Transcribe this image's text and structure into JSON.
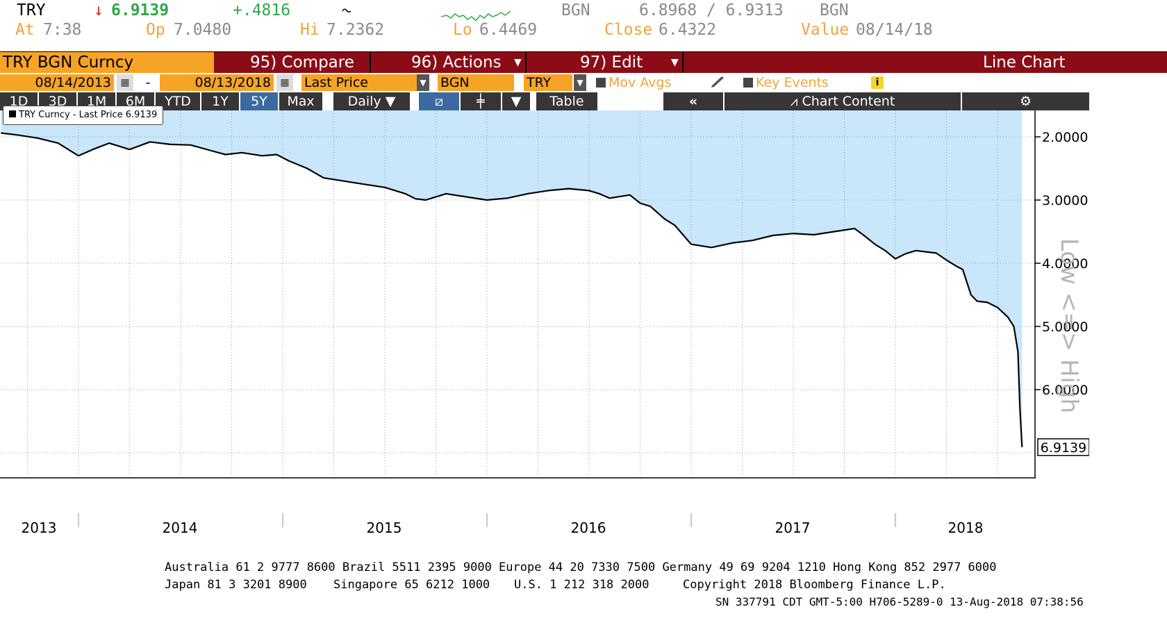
{
  "quote": {
    "ticker": "TRY",
    "arrow": "↓",
    "last": "6.9139",
    "change": "+.4816",
    "source_left": "BGN",
    "bid_ask": "6.8968 / 6.9313",
    "source_right": "BGN",
    "at_label": "At",
    "at_value": "7:38",
    "op_label": "Op",
    "op_value": "7.0480",
    "hi_label": "Hi",
    "hi_value": "7.2362",
    "lo_label": "Lo",
    "lo_value": "6.4469",
    "close_label": "Close",
    "close_value": "6.4322",
    "value_label": "Value",
    "value_value": "08/14/18"
  },
  "titlebar": {
    "security": "TRY BGN Curncy",
    "compare": "95) Compare",
    "actions": "96) Actions",
    "edit": "97) Edit",
    "view": "Line Chart"
  },
  "params": {
    "start_date": "08/14/2013",
    "dash": "-",
    "end_date": "08/13/2018",
    "field": "Last Price",
    "source": "BGN",
    "currency": "TRY",
    "mov_avgs": "Mov Avgs",
    "key_events": "Key Events"
  },
  "ranges": [
    "1D",
    "3D",
    "1M",
    "6M",
    "YTD",
    "1Y",
    "5Y",
    "Max"
  ],
  "active_range": "5Y",
  "periodicity": "Daily",
  "table_label": "Table",
  "chart_content_label": "Chart Content",
  "legend": "TRY Curncy - Last Price 6.9139",
  "axis_watermark": "Low <=> High",
  "colors": {
    "fill": "#c9e6fb",
    "line": "#000000",
    "bar": "#8b0c17",
    "accent": "#f6a326"
  },
  "footer": {
    "line1": "Australia 61 2 9777 8600 Brazil 5511 2395 9000 Europe 44 20 7330 7500 Germany 49 69 9204 1210 Hong Kong 852 2977 6000",
    "line2_a": "Japan 81 3 3201 8900",
    "line2_b": "Singapore 65 6212 1000",
    "line2_c": "U.S. 1 212 318 2000",
    "line2_d": "Copyright 2018 Bloomberg Finance L.P.",
    "line3": "SN 337791 CDT  GMT-5:00 H706-5289-0 13-Aug-2018 07:38:56"
  },
  "chart_data": {
    "type": "area",
    "x_ticks": [
      "2013",
      "2014",
      "2015",
      "2016",
      "2017",
      "2018"
    ],
    "y_ticks": [
      "2.0000",
      "3.0000",
      "4.0000",
      "5.0000",
      "6.0000"
    ],
    "y_inverted": true,
    "ylim": [
      1.5,
      7.5
    ],
    "last_label": "6.9139",
    "series": [
      {
        "name": "TRY Curncy - Last Price",
        "x": [
          2013.62,
          2013.7,
          2013.8,
          2013.9,
          2014.0,
          2014.07,
          2014.15,
          2014.25,
          2014.35,
          2014.45,
          2014.55,
          2014.65,
          2014.72,
          2014.8,
          2014.9,
          2014.97,
          2015.03,
          2015.12,
          2015.2,
          2015.3,
          2015.4,
          2015.5,
          2015.6,
          2015.65,
          2015.7,
          2015.8,
          2015.9,
          2016.0,
          2016.1,
          2016.2,
          2016.3,
          2016.4,
          2016.5,
          2016.55,
          2016.6,
          2016.7,
          2016.75,
          2016.8,
          2016.87,
          2016.92,
          2017.0,
          2017.1,
          2017.2,
          2017.3,
          2017.4,
          2017.5,
          2017.6,
          2017.7,
          2017.8,
          2017.85,
          2017.9,
          2017.95,
          2018.0,
          2018.05,
          2018.1,
          2018.15,
          2018.2,
          2018.25,
          2018.3,
          2018.33,
          2018.37,
          2018.4,
          2018.45,
          2018.5,
          2018.55,
          2018.58,
          2018.6,
          2018.61,
          2018.62
        ],
        "y": [
          1.94,
          1.97,
          2.02,
          2.1,
          2.3,
          2.2,
          2.1,
          2.2,
          2.08,
          2.12,
          2.13,
          2.22,
          2.28,
          2.25,
          2.3,
          2.28,
          2.38,
          2.5,
          2.65,
          2.7,
          2.75,
          2.8,
          2.9,
          2.98,
          3.0,
          2.9,
          2.95,
          3.0,
          2.97,
          2.9,
          2.85,
          2.82,
          2.85,
          2.9,
          2.97,
          2.92,
          3.05,
          3.1,
          3.3,
          3.4,
          3.7,
          3.75,
          3.68,
          3.64,
          3.56,
          3.53,
          3.55,
          3.5,
          3.45,
          3.57,
          3.7,
          3.8,
          3.93,
          3.85,
          3.8,
          3.82,
          3.84,
          3.95,
          4.05,
          4.1,
          4.5,
          4.6,
          4.62,
          4.7,
          4.85,
          5.0,
          5.4,
          6.3,
          6.91
        ]
      }
    ]
  }
}
